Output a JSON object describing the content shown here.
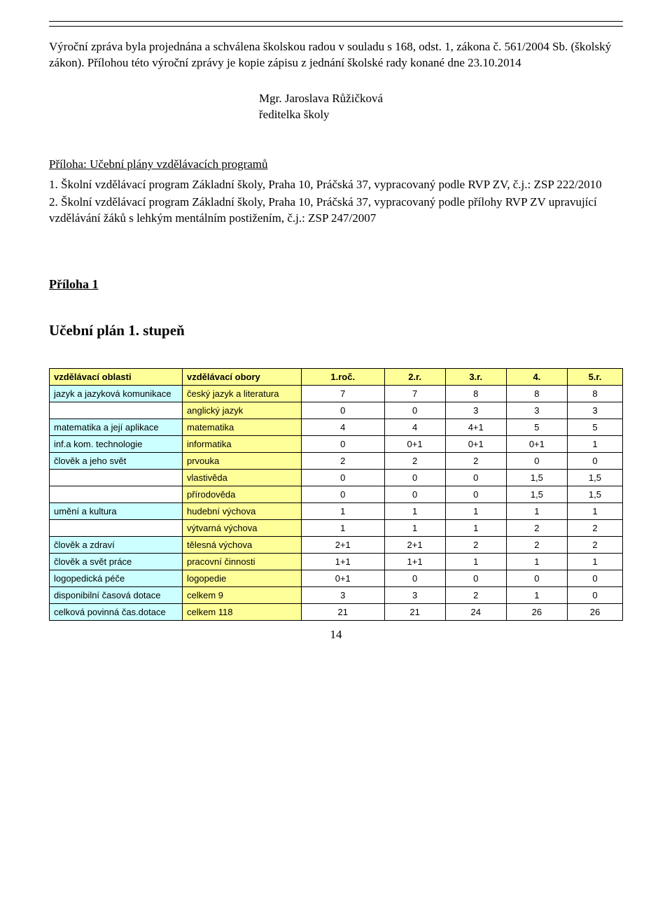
{
  "intro": {
    "para": "Výroční zpráva byla projednána a schválena školskou radou v souladu s 168, odst. 1, zákona č. 561/2004 Sb. (školský zákon).  Přílohou této výroční zprávy je kopie zápisu z jednání školské rady konané dne 23.10.2014",
    "sign1": "Mgr. Jaroslava Růžičková",
    "sign2": "ředitelka školy"
  },
  "priloha_head": {
    "title": "Příloha:  Učební plány vzdělávacích programů",
    "item1": "1. Školní vzdělávací program Základní školy, Praha 10, Práčská 37, vypracovaný podle RVP ZV, č.j.: ZSP 222/2010",
    "item2": "2.  Školní vzdělávací program Základní školy, Praha 10, Práčská 37, vypracovaný podle přílohy RVP ZV upravující vzdělávání žáků s lehkým mentálním postižením, č.j.: ZSP 247/2007"
  },
  "priloha1": "Příloha 1",
  "ucebni": "Učební plán 1. stupeň",
  "table": {
    "header": [
      "vzdělávací oblasti",
      "vzdělávací obory",
      "1.roč.",
      "2.r.",
      "3.r.",
      "4.",
      "5.r."
    ],
    "rows": [
      {
        "area": "jazyk a jazyková komunikace",
        "area_bg": "blue",
        "subj": "český jazyk a literatura",
        "subj_bg": "yellow",
        "v": [
          "7",
          "7",
          "8",
          "8",
          "8"
        ]
      },
      {
        "area": "",
        "area_bg": "white",
        "subj": "anglický jazyk",
        "subj_bg": "yellow",
        "v": [
          "0",
          "0",
          "3",
          "3",
          "3"
        ]
      },
      {
        "area": "matematika a její aplikace",
        "area_bg": "blue",
        "subj": "matematika",
        "subj_bg": "yellow",
        "v": [
          "4",
          "4",
          "4+1",
          "5",
          "5"
        ]
      },
      {
        "area": "inf.a kom. technologie",
        "area_bg": "blue",
        "subj": "informatika",
        "subj_bg": "yellow",
        "v": [
          "0",
          "0+1",
          "0+1",
          "0+1",
          "1"
        ]
      },
      {
        "area": "člověk a jeho svět",
        "area_bg": "blue",
        "subj": "prvouka",
        "subj_bg": "yellow",
        "v": [
          "2",
          "2",
          "2",
          "0",
          "0"
        ]
      },
      {
        "area": "",
        "area_bg": "white",
        "subj": "vlastivěda",
        "subj_bg": "yellow",
        "v": [
          "0",
          "0",
          "0",
          "1,5",
          "1,5"
        ]
      },
      {
        "area": "",
        "area_bg": "white",
        "subj": "přírodověda",
        "subj_bg": "yellow",
        "v": [
          "0",
          "0",
          "0",
          "1,5",
          "1,5"
        ]
      },
      {
        "area": "umění a kultura",
        "area_bg": "blue",
        "subj": "hudební výchova",
        "subj_bg": "yellow",
        "v": [
          "1",
          "1",
          "1",
          "1",
          "1"
        ]
      },
      {
        "area": "",
        "area_bg": "white",
        "subj": "výtvarná výchova",
        "subj_bg": "yellow",
        "v": [
          "1",
          "1",
          "1",
          "2",
          "2"
        ]
      },
      {
        "area": "člověk a zdraví",
        "area_bg": "blue",
        "subj": "tělesná výchova",
        "subj_bg": "yellow",
        "v": [
          "2+1",
          "2+1",
          "2",
          "2",
          "2"
        ]
      },
      {
        "area": "člověk a svět práce",
        "area_bg": "blue",
        "subj": "pracovní činnosti",
        "subj_bg": "yellow",
        "v": [
          "1+1",
          "1+1",
          "1",
          "1",
          "1"
        ]
      },
      {
        "area": "logopedická péče",
        "area_bg": "blue",
        "subj": "logopedie",
        "subj_bg": "yellow",
        "v": [
          "0+1",
          "0",
          "0",
          "0",
          "0"
        ]
      },
      {
        "area": "disponibilní časová dotace",
        "area_bg": "blue",
        "subj": "celkem 9",
        "subj_bg": "yellow",
        "v": [
          "3",
          "3",
          "2",
          "1",
          "0"
        ]
      },
      {
        "area": "celková povinná čas.dotace",
        "area_bg": "blue",
        "subj": "celkem 118",
        "subj_bg": "yellow",
        "v": [
          "21",
          "21",
          "24",
          "26",
          "26"
        ]
      }
    ]
  },
  "page_number": "14",
  "colors": {
    "yellow": "#ffff99",
    "blue": "#ccffff",
    "white": "#ffffff"
  }
}
